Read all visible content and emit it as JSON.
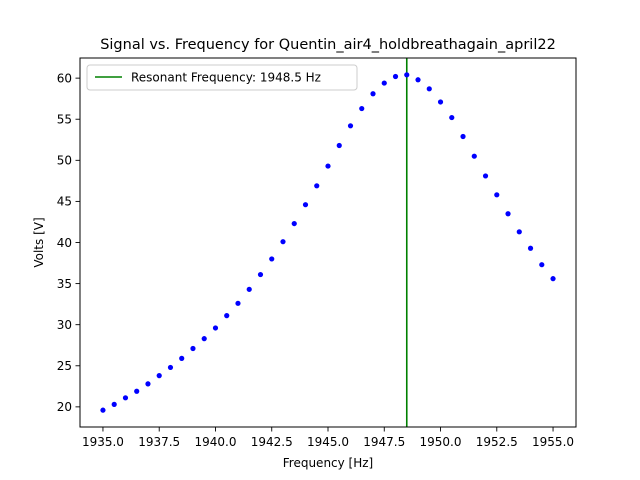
{
  "chart_data": {
    "type": "scatter",
    "title": "Signal vs. Frequency for Quentin_air4_holdbreathagain_april22",
    "xlabel": "Frequency [Hz]",
    "ylabel": "Volts [V]",
    "xlim": [
      1933.98,
      1956.02
    ],
    "ylim": [
      17.55,
      62.45
    ],
    "xticks": [
      1935.0,
      1937.5,
      1940.0,
      1942.5,
      1945.0,
      1947.5,
      1950.0,
      1952.5,
      1955.0
    ],
    "xtick_labels": [
      "1935.0",
      "1937.5",
      "1940.0",
      "1942.5",
      "1945.0",
      "1947.5",
      "1950.0",
      "1952.5",
      "1955.0"
    ],
    "yticks": [
      20,
      25,
      30,
      35,
      40,
      45,
      50,
      55,
      60
    ],
    "ytick_labels": [
      "20",
      "25",
      "30",
      "35",
      "40",
      "45",
      "50",
      "55",
      "60"
    ],
    "grid": false,
    "legend_position": "top-left",
    "series": [
      {
        "name": "",
        "color": "#0000ff",
        "marker": "dot",
        "x": [
          1935.0,
          1935.5,
          1936.0,
          1936.5,
          1937.0,
          1937.5,
          1938.0,
          1938.5,
          1939.0,
          1939.5,
          1940.0,
          1940.5,
          1941.0,
          1941.5,
          1942.0,
          1942.5,
          1943.0,
          1943.5,
          1944.0,
          1944.5,
          1945.0,
          1945.5,
          1946.0,
          1946.5,
          1947.0,
          1947.5,
          1948.0,
          1948.5,
          1949.0,
          1949.5,
          1950.0,
          1950.5,
          1951.0,
          1951.5,
          1952.0,
          1952.5,
          1953.0,
          1953.5,
          1954.0,
          1954.5,
          1955.0
        ],
        "y": [
          19.6,
          20.3,
          21.1,
          21.9,
          22.8,
          23.8,
          24.8,
          25.9,
          27.1,
          28.3,
          29.6,
          31.1,
          32.6,
          34.3,
          36.1,
          38.0,
          40.1,
          42.3,
          44.6,
          46.9,
          49.3,
          51.8,
          54.2,
          56.3,
          58.1,
          59.4,
          60.2,
          60.4,
          59.8,
          58.7,
          57.1,
          55.2,
          52.9,
          50.5,
          48.1,
          45.8,
          43.5,
          41.3,
          39.3,
          37.3,
          35.6
        ]
      },
      {
        "name": "Resonant Frequency: 1948.5 Hz",
        "color": "#008000",
        "type": "vline",
        "x": 1948.5
      }
    ]
  }
}
